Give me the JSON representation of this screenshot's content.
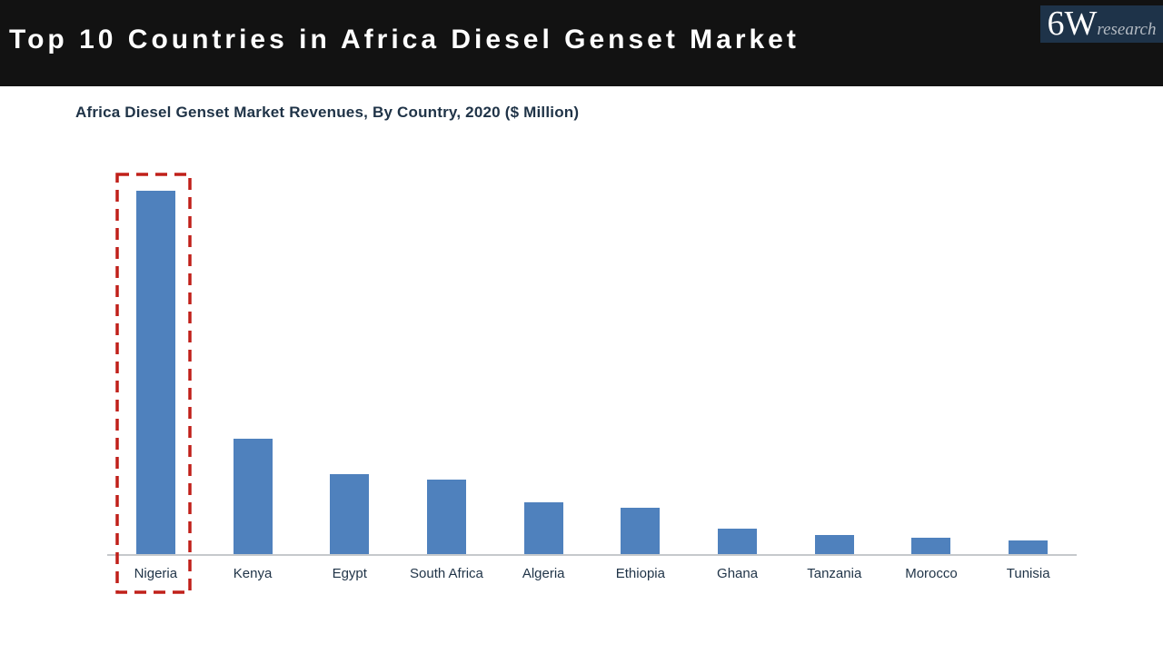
{
  "header": {
    "title": "Top 10 Countries in Africa Diesel Genset Market",
    "bg_color": "#121212",
    "text_color": "#ffffff"
  },
  "logo": {
    "main": "6W",
    "sub": "research",
    "bg_color": "#1e3349"
  },
  "chart_title": "Africa Diesel Genset Market Revenues, By Country, 2020 ($ Million)",
  "chart_data": {
    "type": "bar",
    "title": "Africa Diesel Genset Market Revenues, By Country, 2020 ($ Million)",
    "categories": [
      "Nigeria",
      "Kenya",
      "Egypt",
      "South Africa",
      "Algeria",
      "Ethiopia",
      "Ghana",
      "Tanzania",
      "Morocco",
      "Tunisia"
    ],
    "values": [
      400,
      127,
      88,
      82,
      57,
      51,
      28,
      21,
      18,
      15
    ],
    "units": "$ Million (estimated from bar heights; no axis tick labels shown)",
    "xlabel": "",
    "ylabel": "",
    "ylim": [
      0,
      445
    ],
    "grid": false,
    "legend": false,
    "y_axis_shown": false,
    "value_labels_shown": false,
    "highlighted_category": "Nigeria",
    "bar_color": "#4f81bd",
    "highlight_box_color": "#c0201a",
    "axis_line_color": "#c6c9cc",
    "label_color": "#1f3347"
  }
}
